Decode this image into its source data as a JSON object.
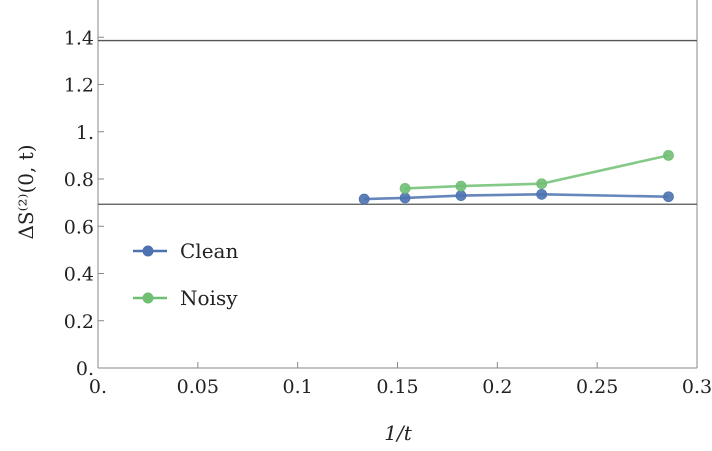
{
  "chart_data": {
    "type": "line",
    "xlabel": "1/t",
    "ylabel": "ΔS⁽²⁾(0, t)",
    "xlim": [
      0,
      0.3
    ],
    "ylim": [
      0,
      1.6
    ],
    "x_ticks": [
      {
        "value": 0,
        "label": "0."
      },
      {
        "value": 0.05,
        "label": "0.05"
      },
      {
        "value": 0.1,
        "label": "0.1"
      },
      {
        "value": 0.15,
        "label": "0.15"
      },
      {
        "value": 0.2,
        "label": "0.2"
      },
      {
        "value": 0.25,
        "label": "0.25"
      },
      {
        "value": 0.3,
        "label": "0.3"
      }
    ],
    "y_ticks": [
      {
        "value": 0,
        "label": "0."
      },
      {
        "value": 0.2,
        "label": "0.2"
      },
      {
        "value": 0.4,
        "label": "0.4"
      },
      {
        "value": 0.6,
        "label": "0.6"
      },
      {
        "value": 0.8,
        "label": "0.8"
      },
      {
        "value": 1.0,
        "label": "1."
      },
      {
        "value": 1.2,
        "label": "1.2"
      },
      {
        "value": 1.4,
        "label": "1.4"
      }
    ],
    "reference_lines": [
      {
        "axis": "y",
        "value": 1.386,
        "color": "#555555"
      },
      {
        "axis": "y",
        "value": 0.693,
        "color": "#555555"
      }
    ],
    "grid": false,
    "legend_position": "center-left",
    "series": [
      {
        "name": "Clean",
        "color": "#4c72b0",
        "x": [
          0.1333,
          0.1538,
          0.1818,
          0.2222,
          0.2857
        ],
        "y": [
          0.715,
          0.72,
          0.73,
          0.735,
          0.725
        ]
      },
      {
        "name": "Noisy",
        "color": "#6fbf73",
        "x": [
          0.1538,
          0.1818,
          0.2222,
          0.2857
        ],
        "y": [
          0.76,
          0.77,
          0.78,
          0.9
        ]
      }
    ]
  }
}
